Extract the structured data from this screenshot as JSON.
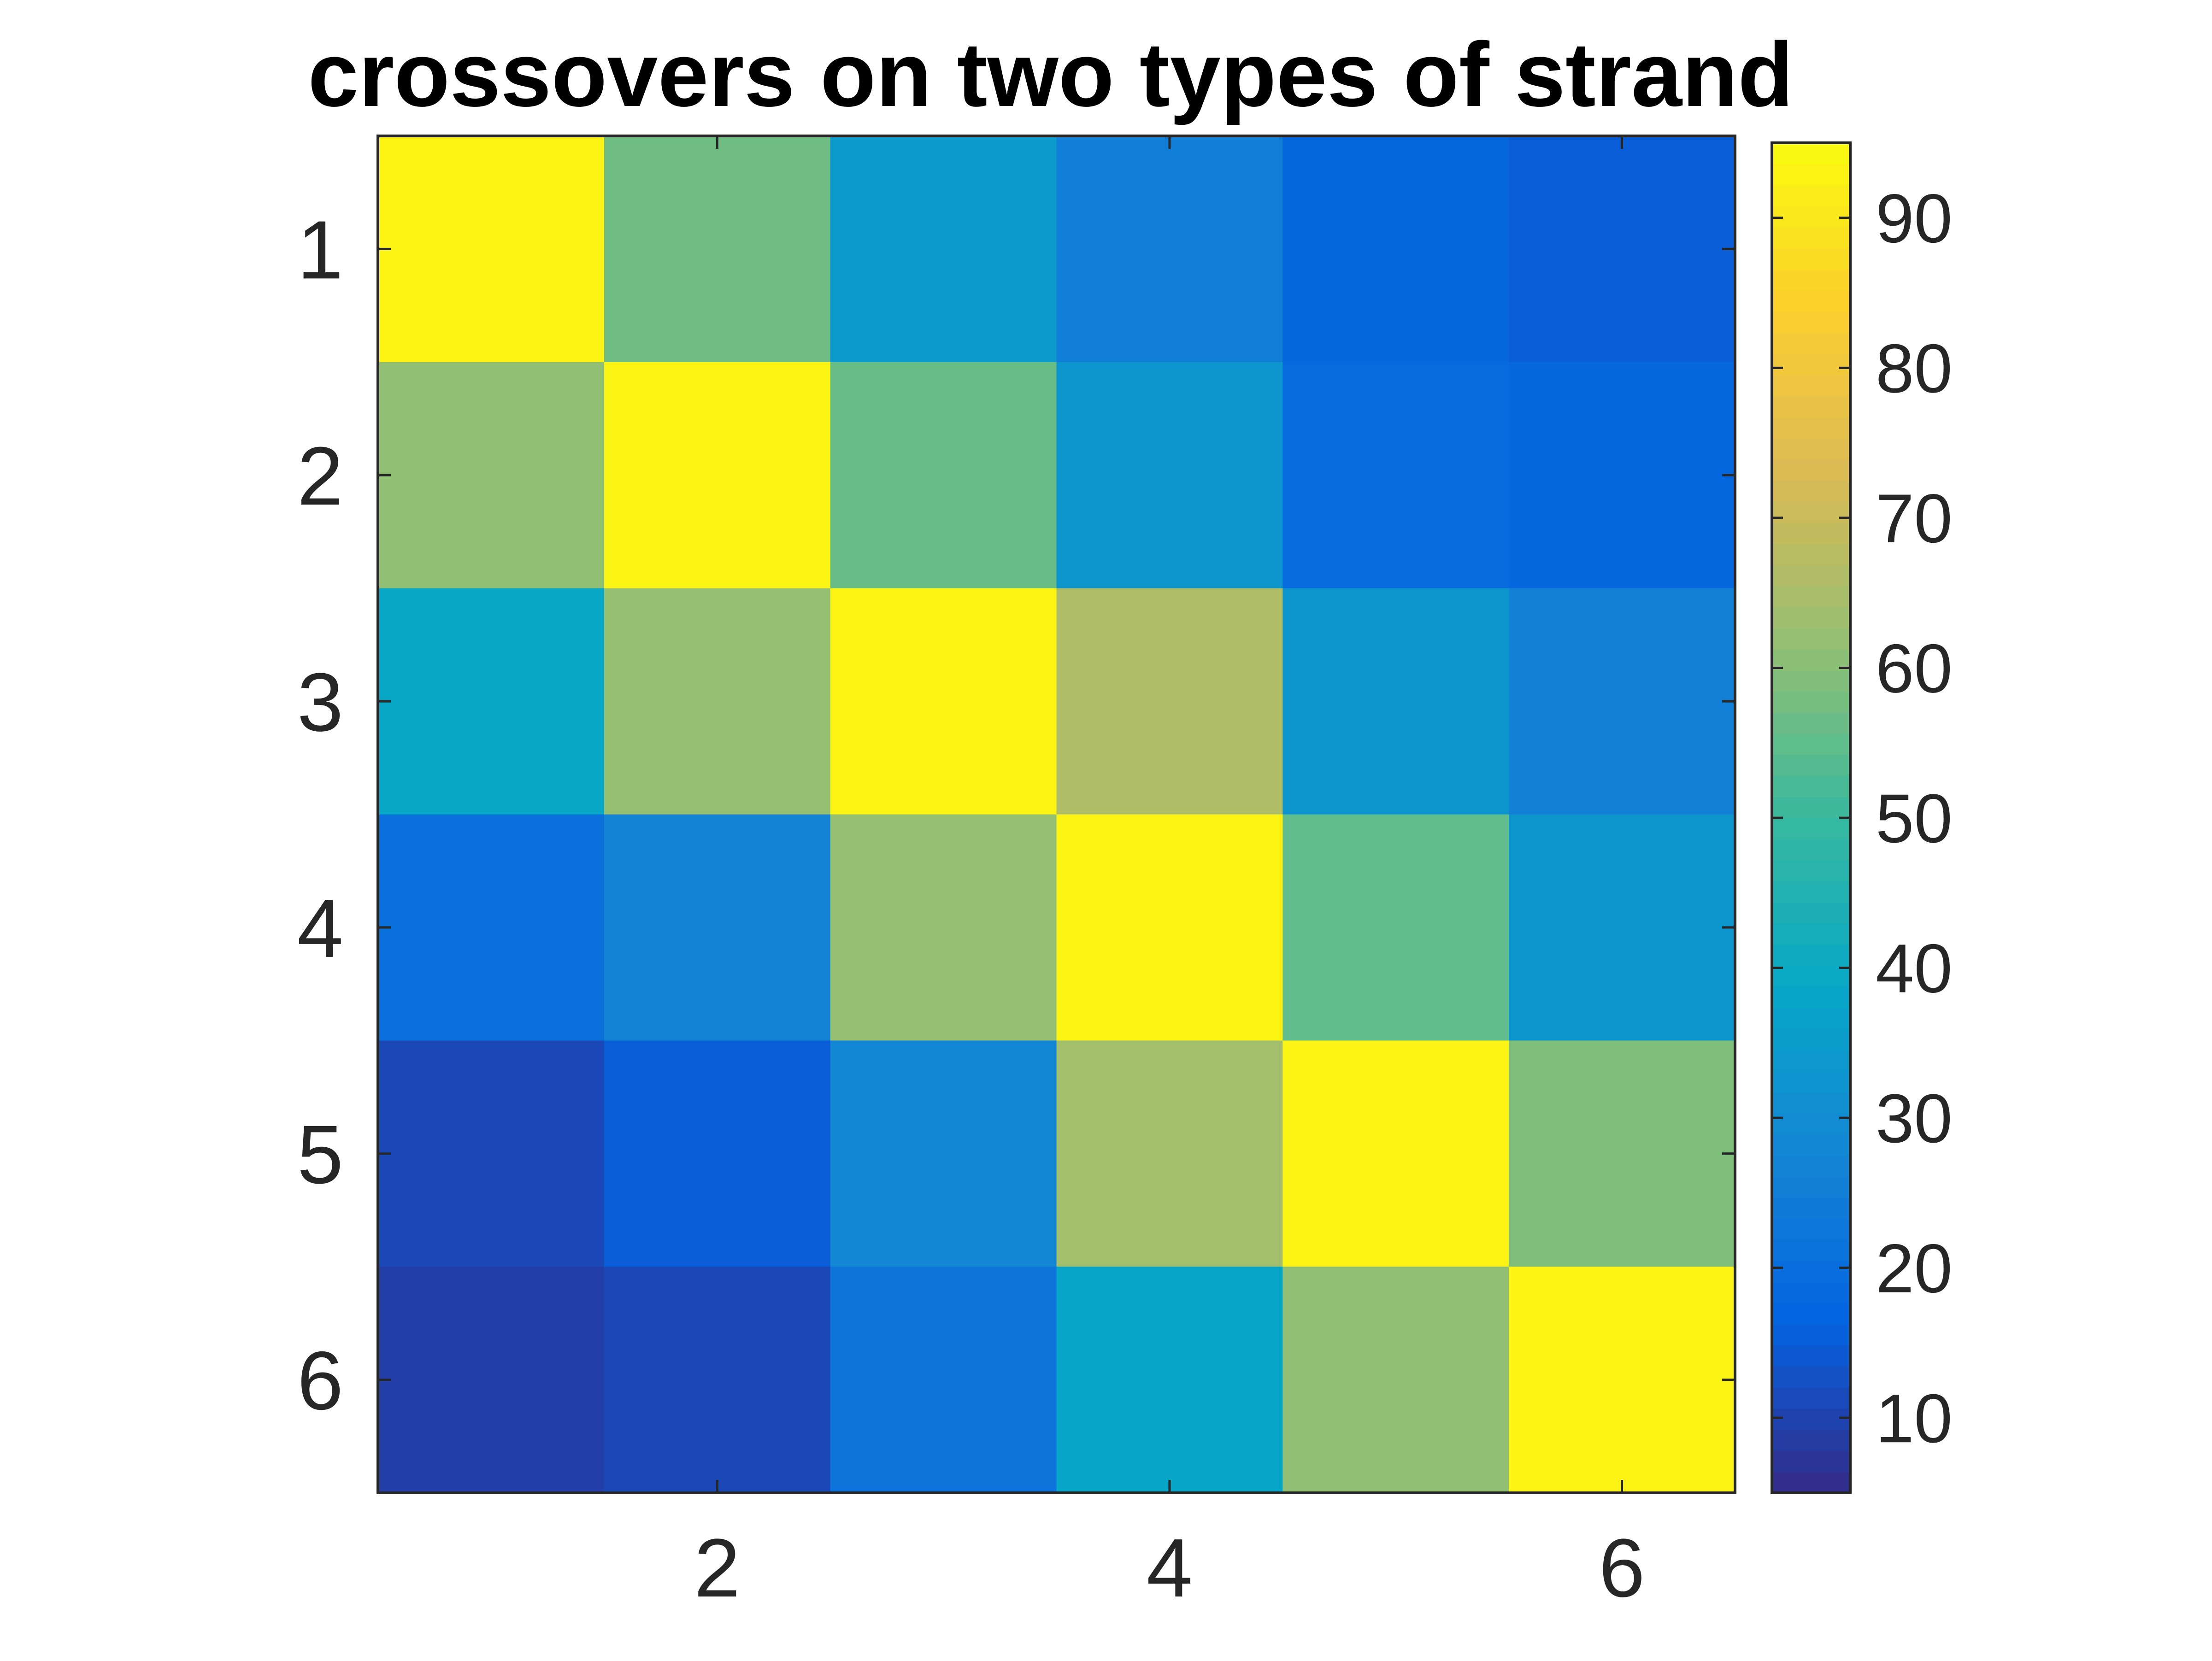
{
  "chart_data": {
    "type": "heatmap",
    "title": "crossovers on two types of strand",
    "xlabel": "",
    "ylabel": "",
    "rows": [
      1,
      2,
      3,
      4,
      5,
      6
    ],
    "cols": [
      1,
      2,
      3,
      4,
      5,
      6
    ],
    "xlim": [
      0.5,
      6.5
    ],
    "ylim": [
      0.5,
      6.5
    ],
    "y_direction": "reversed",
    "x_ticks": [
      2,
      4,
      6
    ],
    "x_tick_labels": [
      "2",
      "4",
      "6"
    ],
    "y_ticks": [
      1,
      2,
      3,
      4,
      5,
      6
    ],
    "y_tick_labels": [
      "1",
      "2",
      "3",
      "4",
      "5",
      "6"
    ],
    "values": [
      [
        93,
        57,
        34,
        25,
        18,
        15
      ],
      [
        61,
        93,
        56,
        33,
        19,
        18
      ],
      [
        39,
        62,
        93,
        66,
        33,
        26
      ],
      [
        21,
        27,
        62,
        93,
        55,
        33
      ],
      [
        11,
        15,
        28,
        64,
        93,
        59
      ],
      [
        9,
        11,
        22,
        38,
        61,
        93
      ]
    ],
    "colorbar": {
      "placement": "right",
      "range": [
        5,
        95
      ],
      "ticks": [
        10,
        20,
        30,
        40,
        50,
        60,
        70,
        80,
        90
      ],
      "tick_labels": [
        "10",
        "20",
        "30",
        "40",
        "50",
        "60",
        "70",
        "80",
        "90"
      ],
      "colormap": "parula",
      "colormap_stops": [
        "#352a87",
        "#0363e1",
        "#1485d4",
        "#06a7c6",
        "#38b99e",
        "#92bf73",
        "#d9ba56",
        "#fcce2e",
        "#f9fb0e"
      ]
    },
    "grid": false
  }
}
